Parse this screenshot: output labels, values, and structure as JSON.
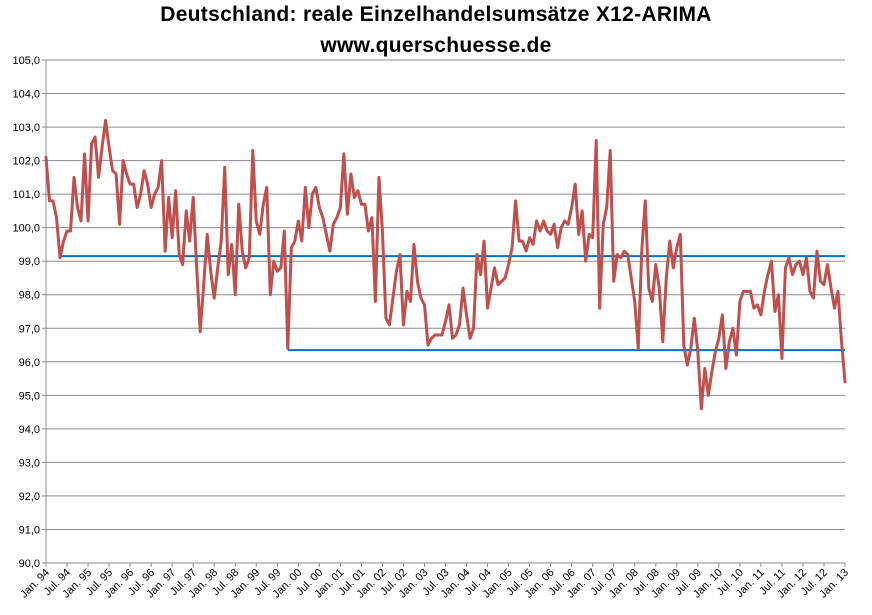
{
  "chart_data": {
    "type": "line",
    "title": "Deutschland: reale Einzelhandelsumsätze  X12-ARIMA",
    "subtitle": "www.querschuesse.de",
    "ylim": [
      90,
      105
    ],
    "yticks": [
      "90,0",
      "91,0",
      "92,0",
      "93,0",
      "94,0",
      "95,0",
      "96,0",
      "97,0",
      "98,0",
      "99,0",
      "100,0",
      "101,0",
      "102,0",
      "103,0",
      "104,0",
      "105,0"
    ],
    "xlim": [
      "1994-01",
      "2013-01"
    ],
    "xticks": [
      "Jan. 94",
      "Jul. 94",
      "Jan. 95",
      "Jul. 95",
      "Jan. 96",
      "Jul. 96",
      "Jan. 97",
      "Jul. 97",
      "Jan. 98",
      "Jul. 98",
      "Jan. 99",
      "Jul. 99",
      "Jan. 00",
      "Jul. 00",
      "Jan. 01",
      "Jul. 01",
      "Jan. 02",
      "Jul. 02",
      "Jan. 03",
      "Jul. 03",
      "Jan. 04",
      "Jul. 04",
      "Jan. 05",
      "Jul. 05",
      "Jan. 06",
      "Jul. 06",
      "Jan. 07",
      "Jul. 07",
      "Jan. 08",
      "Jul. 08",
      "Jan. 09",
      "Jul. 09",
      "Jan. 10",
      "Jul. 10",
      "Jan. 11",
      "Jul. 11",
      "Jan. 12",
      "Jul. 12",
      "Jan. 13"
    ],
    "grid": true,
    "series": [
      {
        "color": "#c0504d",
        "x_start": "1994-01",
        "step": "month",
        "values": [
          102.1,
          100.8,
          100.8,
          100.3,
          99.1,
          99.6,
          99.9,
          99.9,
          101.5,
          100.6,
          100.2,
          102.2,
          100.2,
          102.5,
          102.7,
          101.5,
          102.4,
          103.2,
          102.4,
          101.7,
          101.6,
          100.1,
          102.0,
          101.6,
          101.3,
          101.3,
          100.6,
          101.0,
          101.7,
          101.3,
          100.6,
          101.0,
          101.2,
          102.0,
          99.3,
          100.9,
          99.7,
          101.1,
          99.2,
          98.9,
          100.5,
          99.6,
          100.9,
          98.8,
          96.9,
          98.3,
          99.8,
          98.7,
          97.9,
          98.8,
          99.6,
          101.8,
          98.6,
          99.5,
          98.0,
          100.7,
          99.3,
          98.8,
          99.1,
          102.3,
          100.2,
          99.8,
          100.7,
          101.2,
          98.0,
          99.0,
          98.7,
          98.8,
          99.9,
          96.4,
          99.4,
          99.6,
          100.2,
          99.6,
          101.2,
          100.0,
          101.0,
          101.2,
          100.6,
          100.3,
          99.8,
          99.3,
          100.1,
          100.3,
          100.6,
          102.2,
          100.4,
          101.6,
          100.9,
          101.1,
          100.7,
          100.7,
          99.9,
          100.3,
          97.8,
          101.5,
          99.9,
          97.3,
          97.1,
          97.9,
          98.7,
          99.2,
          97.1,
          98.1,
          97.8,
          99.5,
          98.4,
          97.9,
          97.7,
          96.5,
          96.7,
          96.8,
          96.8,
          96.8,
          97.2,
          97.7,
          96.7,
          96.8,
          97.1,
          98.2,
          97.4,
          96.7,
          97.0,
          99.2,
          98.6,
          99.6,
          97.6,
          98.2,
          98.8,
          98.3,
          98.4,
          98.5,
          98.9,
          99.4,
          100.8,
          99.6,
          99.6,
          99.3,
          99.7,
          99.5,
          100.2,
          99.9,
          100.2,
          99.9,
          99.8,
          100.1,
          99.4,
          100.0,
          100.2,
          100.1,
          100.6,
          101.3,
          99.8,
          100.5,
          99.0,
          99.8,
          99.7,
          102.6,
          97.6,
          100.1,
          100.6,
          102.3,
          98.4,
          99.2,
          99.1,
          99.3,
          99.2,
          98.5,
          97.8,
          96.4,
          99.3,
          100.8,
          98.2,
          97.8,
          98.9,
          98.2,
          96.6,
          98.5,
          99.6,
          98.8,
          99.4,
          99.8,
          96.5,
          95.9,
          96.4,
          97.3,
          96.3,
          94.6,
          95.8,
          95.0,
          95.7,
          96.3,
          96.7,
          97.4,
          95.8,
          96.6,
          97.0,
          96.2,
          97.8,
          98.1,
          98.1,
          98.1,
          97.6,
          97.7,
          97.4,
          98.1,
          98.6,
          99.0,
          97.5,
          98.0,
          96.1,
          98.8,
          99.1,
          98.6,
          98.9,
          99.0,
          98.6,
          99.1,
          98.1,
          97.9,
          99.3,
          98.4,
          98.3,
          98.9,
          98.2,
          97.6,
          98.1,
          96.6,
          95.4
        ]
      }
    ],
    "reference_lines": [
      {
        "color": "#0070c0",
        "value": 99.15,
        "x_from": "1994-05",
        "x_to": "2013-01"
      },
      {
        "color": "#0070c0",
        "value": 96.35,
        "x_from": "1999-10",
        "x_to": "2013-01"
      }
    ]
  }
}
